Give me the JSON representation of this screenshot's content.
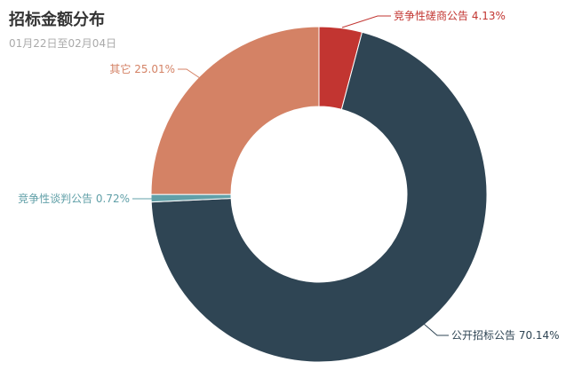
{
  "chart_data": {
    "type": "pie",
    "title": "招标金额分布",
    "subtitle": "01月22日至02月04日",
    "slices": [
      {
        "name": "竞争性磋商公告",
        "value": 4.13,
        "label": "竞争性磋商公告 4.13%",
        "color": "#c23531"
      },
      {
        "name": "公开招标公告",
        "value": 70.14,
        "label": "公开招标公告 70.14%",
        "color": "#2f4554"
      },
      {
        "name": "竞争性谈判公告",
        "value": 0.72,
        "label": "竞争性谈判公告 0.72%",
        "color": "#61a0a8"
      },
      {
        "name": "其它",
        "value": 25.01,
        "label": "其它 25.01%",
        "color": "#d48265"
      }
    ],
    "legend": "none",
    "donut": true
  }
}
